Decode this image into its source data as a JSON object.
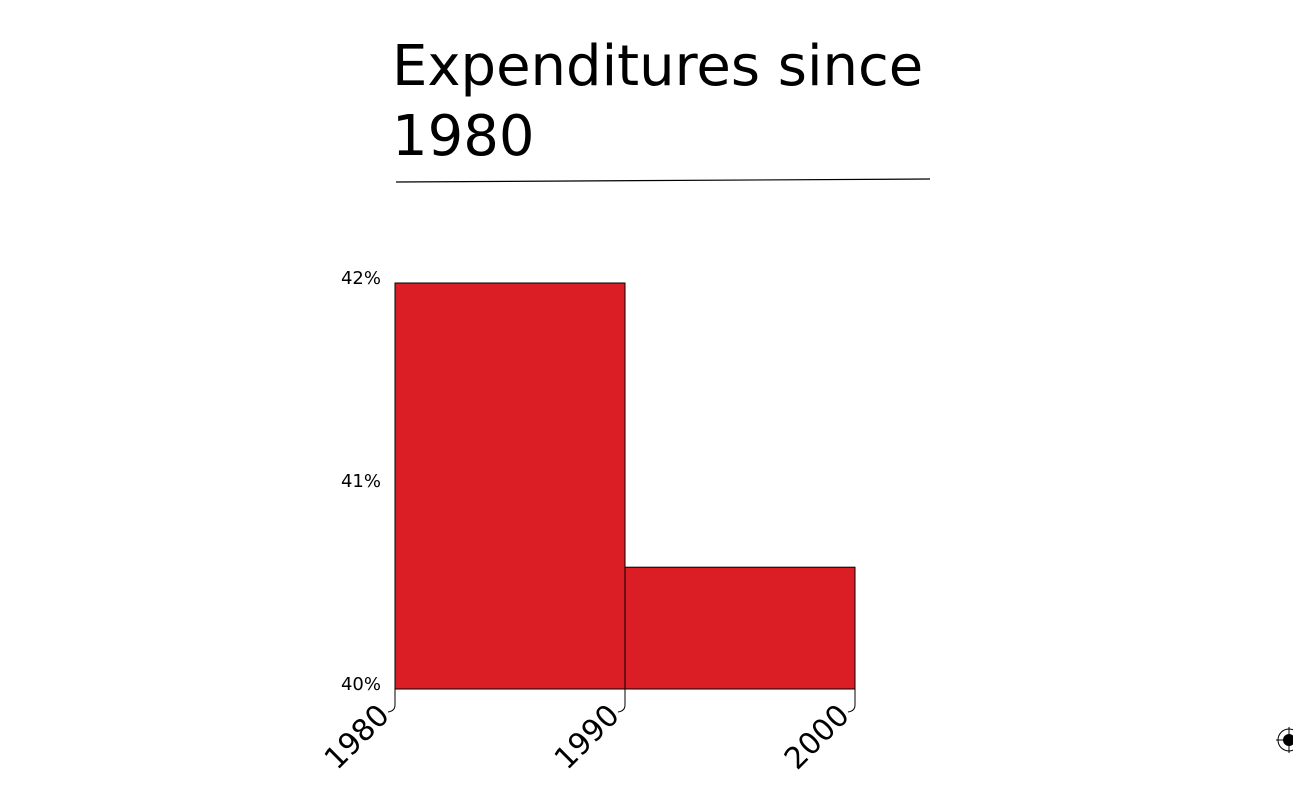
{
  "chart_data": {
    "type": "bar",
    "title": "Expenditures since 1980",
    "x_edges": [
      1980,
      1990,
      2000
    ],
    "x_tick_labels": [
      "1980",
      "1990",
      "2000"
    ],
    "bins": [
      {
        "x_start": 1980,
        "x_end": 1990,
        "value": 42.0
      },
      {
        "x_start": 1990,
        "x_end": 2000,
        "value": 40.6
      }
    ],
    "y_ticks": [
      40,
      41,
      42
    ],
    "y_tick_labels": [
      "40%",
      "41%",
      "42%"
    ],
    "ylim": [
      40,
      42
    ],
    "xlabel": "",
    "ylabel": "",
    "grid": false,
    "legend": "none",
    "bar_color": "#db1e26",
    "edge_color": "#000000"
  },
  "widgets": {
    "corner_icon": "crosshair-icon"
  }
}
